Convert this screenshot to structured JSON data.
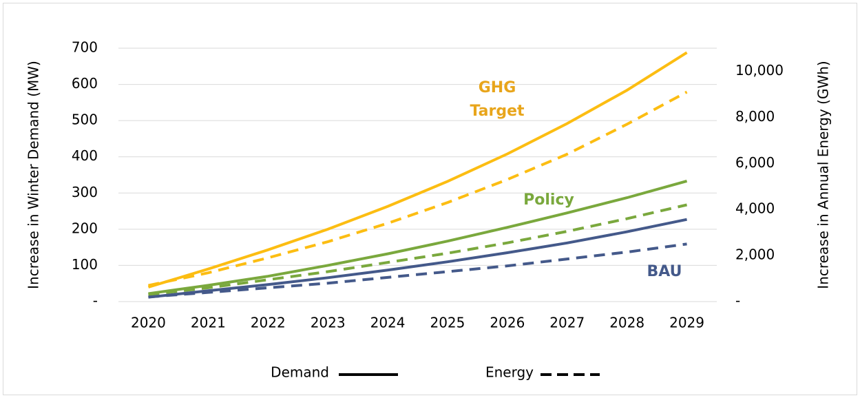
{
  "chart_data": {
    "type": "line",
    "categories": [
      "2020",
      "2021",
      "2022",
      "2023",
      "2024",
      "2025",
      "2026",
      "2027",
      "2028",
      "2029"
    ],
    "series": [
      {
        "color": "#fcbd12",
        "dash": false,
        "values": [
          40,
          90,
          143,
          200,
          263,
          332,
          408,
          492,
          584,
          688
        ]
      },
      {
        "color": "#fcbd12",
        "dash": true,
        "axis": "y2",
        "values": [
          700,
          1250,
          1900,
          2600,
          3400,
          4300,
          5300,
          6400,
          7700,
          9100
        ]
      },
      {
        "color": "#7aa83d",
        "dash": false,
        "values": [
          22,
          45,
          70,
          100,
          132,
          167,
          205,
          245,
          287,
          333
        ]
      },
      {
        "color": "#7aa83d",
        "dash": true,
        "axis": "y2",
        "values": [
          300,
          600,
          950,
          1300,
          1700,
          2100,
          2550,
          3050,
          3600,
          4200
        ]
      },
      {
        "color": "#44598a",
        "dash": false,
        "values": [
          12,
          30,
          47,
          66,
          87,
          110,
          135,
          162,
          193,
          227
        ]
      },
      {
        "color": "#44598a",
        "dash": true,
        "axis": "y2",
        "values": [
          200,
          400,
          600,
          800,
          1050,
          1300,
          1550,
          1850,
          2150,
          2500
        ]
      }
    ],
    "ylabel": "Increase in Winter Demand (MW)",
    "y2label": "Increase in Annual Energy  (GWh)",
    "ylim": [
      0,
      700
    ],
    "yticks": [
      {
        "value": 0,
        "label": "-"
      },
      100,
      200,
      300,
      400,
      500,
      600,
      700
    ],
    "y2lim": [
      0,
      11000
    ],
    "y2ticks": [
      {
        "value": 0,
        "label": "-"
      },
      {
        "value": 2000,
        "label": "2,000"
      },
      {
        "value": 4000,
        "label": "4,000"
      },
      {
        "value": 6000,
        "label": "6,000"
      },
      {
        "value": 8000,
        "label": "8,000"
      },
      {
        "value": 10000,
        "label": "10,000"
      }
    ],
    "grid": true,
    "annotations": [
      {
        "lines": [
          "GHG",
          "Target"
        ],
        "color": "#e8a51b"
      },
      {
        "lines": [
          "Policy"
        ],
        "color": "#7aa83d"
      },
      {
        "lines": [
          "BAU"
        ],
        "color": "#44598a"
      }
    ],
    "legend": [
      {
        "label": "Demand",
        "dash": false,
        "color": "#000000"
      },
      {
        "label": "Energy",
        "dash": true,
        "color": "#000000"
      }
    ]
  }
}
